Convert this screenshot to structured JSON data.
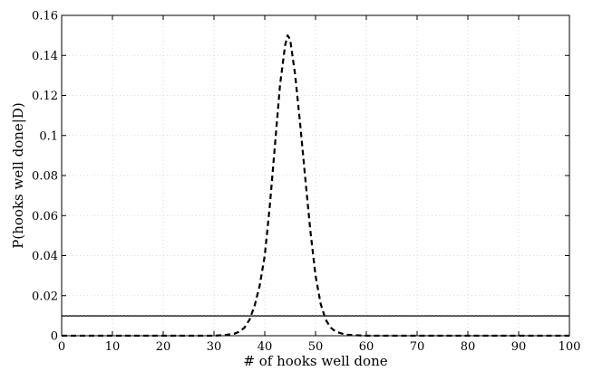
{
  "chart_data": {
    "type": "line",
    "title": "",
    "xlabel": "# of hooks well done",
    "ylabel": "P(hooks well done|D)",
    "xlim": [
      0,
      100
    ],
    "ylim": [
      0,
      0.16
    ],
    "x_ticks": [
      0,
      10,
      20,
      30,
      40,
      50,
      60,
      70,
      80,
      90,
      100
    ],
    "y_ticks": [
      0,
      0.02,
      0.04,
      0.06,
      0.08,
      0.1,
      0.12,
      0.14,
      0.16
    ],
    "x_tick_labels": [
      "0",
      "10",
      "20",
      "30",
      "40",
      "50",
      "60",
      "70",
      "80",
      "90",
      "100"
    ],
    "y_tick_labels": [
      "0",
      "0.02",
      "0.04",
      "0.06",
      "0.08",
      "0.1",
      "0.12",
      "0.14",
      "0.16"
    ],
    "grid": true,
    "legend": "none",
    "series": [
      {
        "style": "dashed",
        "color": "#000000",
        "x": [
          0,
          5,
          10,
          15,
          20,
          25,
          28,
          30,
          32,
          34,
          35,
          36,
          37,
          38,
          39,
          40,
          41,
          42,
          43,
          44,
          44.5,
          45,
          46,
          47,
          48,
          49,
          50,
          51,
          52,
          53,
          54,
          56,
          60,
          70,
          80,
          90,
          100
        ],
        "y": [
          0,
          0,
          0,
          0,
          0,
          0,
          0,
          0,
          0.0003,
          0.001,
          0.002,
          0.004,
          0.008,
          0.015,
          0.025,
          0.04,
          0.065,
          0.095,
          0.125,
          0.145,
          0.15,
          0.148,
          0.13,
          0.105,
          0.078,
          0.052,
          0.03,
          0.016,
          0.008,
          0.004,
          0.002,
          0.0005,
          0,
          0,
          0,
          0,
          0
        ]
      },
      {
        "style": "solid",
        "color": "#000000",
        "x": [
          0,
          100
        ],
        "y": [
          0.0099,
          0.0099
        ]
      },
      {
        "style": "dotted",
        "color": "#555555",
        "x": [
          0,
          100
        ],
        "y": [
          0.0101,
          0.0101
        ]
      }
    ]
  }
}
